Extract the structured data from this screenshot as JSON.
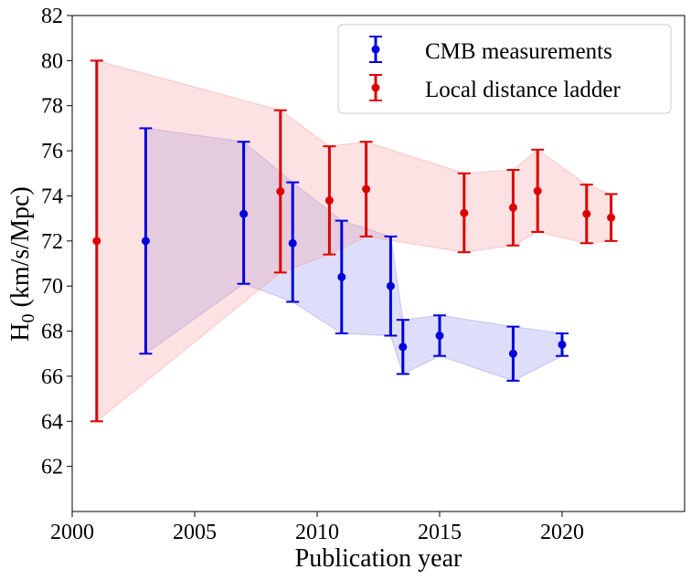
{
  "chart_data": {
    "type": "scatter",
    "title": "",
    "xlabel": "Publication year",
    "ylabel": "H",
    "ylabel_subscript": "0",
    "ylabel_unit": " (km/s/Mpc)",
    "xlim": [
      2000,
      2025
    ],
    "ylim": [
      60,
      82
    ],
    "xticks": [
      "2000",
      "2005",
      "2010",
      "2015",
      "2020"
    ],
    "yticks": [
      "62",
      "64",
      "66",
      "68",
      "70",
      "72",
      "74",
      "76",
      "78",
      "80",
      "82"
    ],
    "grid": false,
    "legend_position": "top-right",
    "series": [
      {
        "name": "CMB measurements",
        "color": "#0000dd",
        "band_color": "#9999ee",
        "points": [
          {
            "x": 2003,
            "y": 72.0,
            "lo": 67.0,
            "hi": 77.0
          },
          {
            "x": 2007,
            "y": 73.2,
            "lo": 70.1,
            "hi": 76.4
          },
          {
            "x": 2009,
            "y": 71.9,
            "lo": 69.3,
            "hi": 74.6
          },
          {
            "x": 2011,
            "y": 70.4,
            "lo": 67.9,
            "hi": 72.9
          },
          {
            "x": 2013,
            "y": 70.0,
            "lo": 67.8,
            "hi": 72.2
          },
          {
            "x": 2013.5,
            "y": 67.3,
            "lo": 66.1,
            "hi": 68.5
          },
          {
            "x": 2015,
            "y": 67.8,
            "lo": 66.9,
            "hi": 68.7
          },
          {
            "x": 2018,
            "y": 67.0,
            "lo": 65.8,
            "hi": 68.2
          },
          {
            "x": 2020,
            "y": 67.4,
            "lo": 66.9,
            "hi": 67.9
          }
        ]
      },
      {
        "name": "Local distance ladder",
        "color": "#dd0000",
        "band_color": "#f4a0a0",
        "points": [
          {
            "x": 2001,
            "y": 72.0,
            "lo": 64.0,
            "hi": 80.0
          },
          {
            "x": 2008.5,
            "y": 74.2,
            "lo": 70.6,
            "hi": 77.8
          },
          {
            "x": 2010.5,
            "y": 73.8,
            "lo": 71.4,
            "hi": 76.2
          },
          {
            "x": 2012,
            "y": 74.3,
            "lo": 72.2,
            "hi": 76.4
          },
          {
            "x": 2016,
            "y": 73.24,
            "lo": 71.5,
            "hi": 75.0
          },
          {
            "x": 2018,
            "y": 73.48,
            "lo": 71.8,
            "hi": 75.15
          },
          {
            "x": 2019,
            "y": 74.22,
            "lo": 72.4,
            "hi": 76.05
          },
          {
            "x": 2021,
            "y": 73.2,
            "lo": 71.9,
            "hi": 74.5
          },
          {
            "x": 2022,
            "y": 73.04,
            "lo": 72.0,
            "hi": 74.08
          }
        ]
      }
    ]
  }
}
